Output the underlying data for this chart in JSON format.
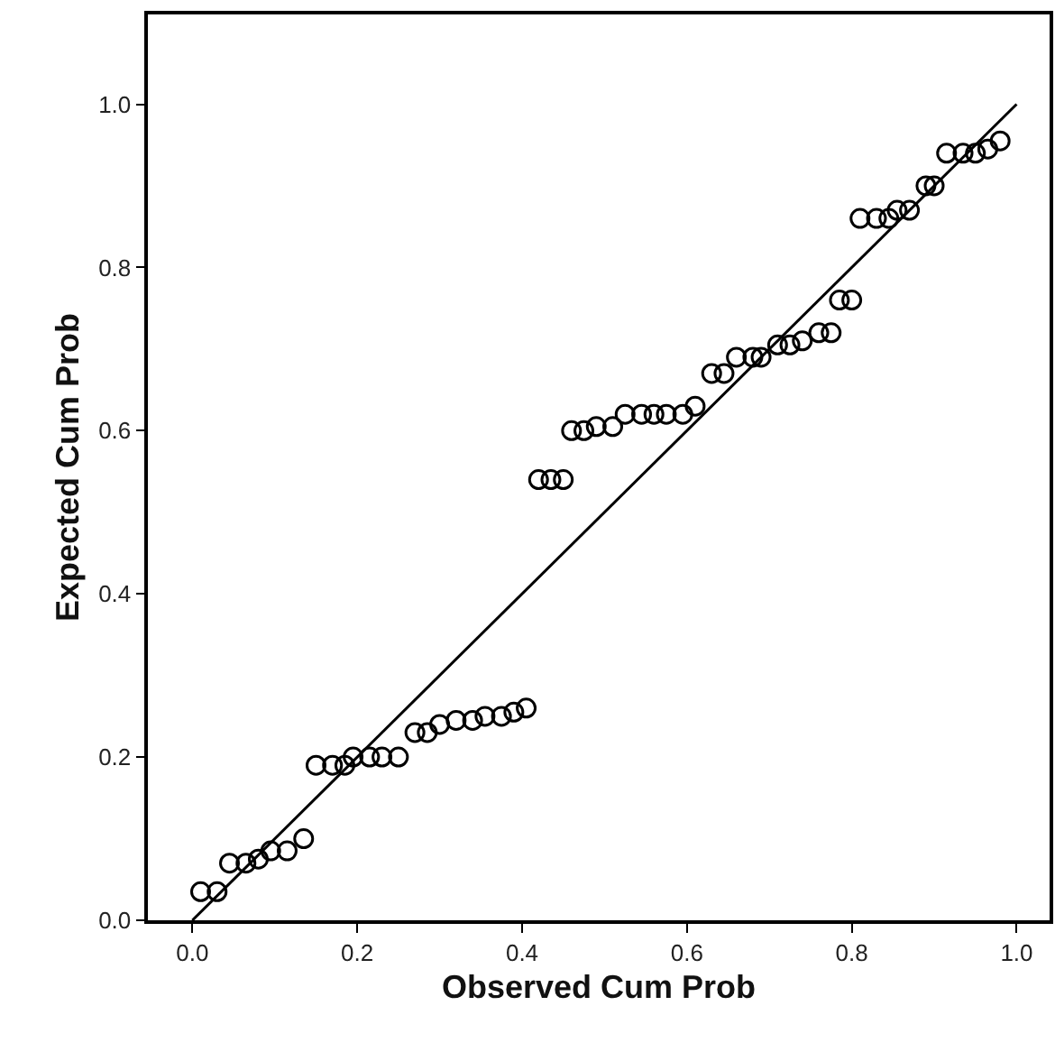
{
  "chart_data": {
    "type": "scatter",
    "xlabel": "Observed Cum Prob",
    "ylabel": "Expected Cum Prob",
    "xlim": [
      -0.054,
      1.04
    ],
    "ylim": [
      0,
      1.11
    ],
    "xticks": [
      {
        "value": 0,
        "label": "0.0"
      },
      {
        "value": 0.2,
        "label": "0.2"
      },
      {
        "value": 0.4,
        "label": "0.4"
      },
      {
        "value": 0.6,
        "label": "0.6"
      },
      {
        "value": 0.8,
        "label": "0.8"
      },
      {
        "value": 1,
        "label": "1.0"
      }
    ],
    "yticks": [
      {
        "value": 0,
        "label": "0.0"
      },
      {
        "value": 0.2,
        "label": "0.2"
      },
      {
        "value": 0.4,
        "label": "0.4"
      },
      {
        "value": 0.6,
        "label": "0.6"
      },
      {
        "value": 0.8,
        "label": "0.8"
      },
      {
        "value": 1,
        "label": "1.0"
      }
    ],
    "marker": "circle",
    "series": [
      {
        "color": "#000000",
        "x": [
          0.01,
          0.03,
          0.045,
          0.065,
          0.08,
          0.095,
          0.115,
          0.135,
          0.15,
          0.17,
          0.185,
          0.195,
          0.215,
          0.23,
          0.25,
          0.27,
          0.285,
          0.3,
          0.32,
          0.34,
          0.355,
          0.375,
          0.39,
          0.405,
          0.42,
          0.435,
          0.45,
          0.46,
          0.475,
          0.49,
          0.51,
          0.525,
          0.545,
          0.56,
          0.575,
          0.595,
          0.61,
          0.63,
          0.645,
          0.66,
          0.68,
          0.69,
          0.71,
          0.725,
          0.74,
          0.76,
          0.775,
          0.785,
          0.8,
          0.81,
          0.83,
          0.845,
          0.855,
          0.87,
          0.89,
          0.9,
          0.915,
          0.935,
          0.95,
          0.965,
          0.98
        ],
        "values": [
          0.035,
          0.035,
          0.07,
          0.07,
          0.075,
          0.085,
          0.085,
          0.1,
          0.19,
          0.19,
          0.19,
          0.2,
          0.2,
          0.2,
          0.2,
          0.23,
          0.23,
          0.24,
          0.245,
          0.245,
          0.25,
          0.25,
          0.255,
          0.26,
          0.54,
          0.54,
          0.54,
          0.6,
          0.6,
          0.605,
          0.605,
          0.62,
          0.62,
          0.62,
          0.62,
          0.62,
          0.63,
          0.67,
          0.67,
          0.69,
          0.69,
          0.69,
          0.705,
          0.705,
          0.71,
          0.72,
          0.72,
          0.76,
          0.76,
          0.86,
          0.86,
          0.86,
          0.87,
          0.87,
          0.9,
          0.9,
          0.94,
          0.94,
          0.94,
          0.945,
          0.955
        ]
      },
      {
        "type": "line",
        "color": "#000000",
        "marker": "none",
        "line_style": "solid",
        "x": [
          0,
          1
        ],
        "values": [
          0,
          1
        ]
      }
    ]
  }
}
